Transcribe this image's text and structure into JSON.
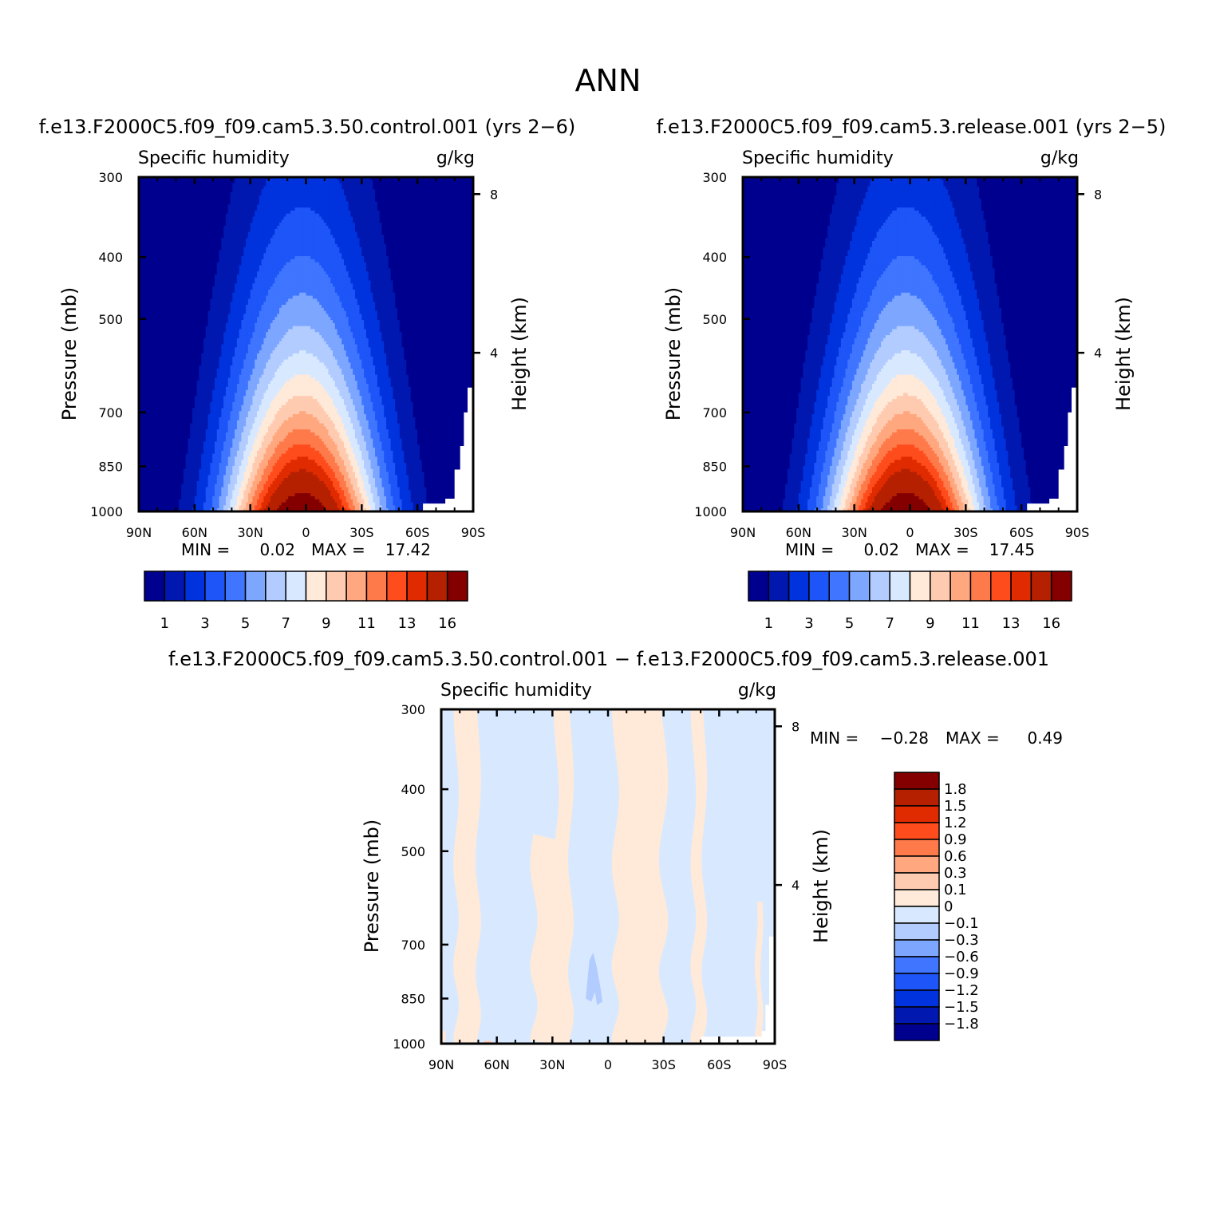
{
  "figure_title": "ANN",
  "diff_title": "f.e13.F2000C5.f09_f09.cam5.3.50.control.001 − f.e13.F2000C5.f09_f09.cam5.3.release.001",
  "chart_data": [
    {
      "type": "heatmap",
      "case": "f.e13.F2000C5.f09_f09.cam5.3.50.control.001 (yrs 2−6)",
      "variable": "Specific humidity",
      "units": "g/kg",
      "ylabel": "Pressure (mb)",
      "ylabel_right": "Height (km)",
      "x_ticks": [
        "90N",
        "60N",
        "30N",
        "0",
        "30S",
        "60S",
        "90S"
      ],
      "y_ticks": [
        "300",
        "400",
        "500",
        "700",
        "850",
        "1000"
      ],
      "y_ticks_right": [
        "8",
        "4"
      ],
      "ylim": [
        1000,
        300
      ],
      "min": "0.02",
      "max": "17.42",
      "min_label": "MIN =",
      "max_label": "MAX =",
      "colorbar_labels": [
        "1",
        "3",
        "5",
        "7",
        "9",
        "11",
        "13",
        "16"
      ],
      "colors": [
        "#00008e",
        "#0018b0",
        "#0033dd",
        "#1d55f8",
        "#3f75ff",
        "#7da6ff",
        "#b2ccff",
        "#d8e9ff",
        "#ffe9d8",
        "#ffcbb0",
        "#ffa880",
        "#ff7a4a",
        "#ff4c1c",
        "#e02b00",
        "#b52000",
        "#840000"
      ],
      "contour_levels": [
        1,
        2,
        3,
        4,
        5,
        6,
        7,
        8,
        9,
        10,
        11,
        12,
        13,
        14,
        16
      ]
    },
    {
      "type": "heatmap",
      "case": "f.e13.F2000C5.f09_f09.cam5.3.release.001 (yrs 2−5)",
      "variable": "Specific humidity",
      "units": "g/kg",
      "ylabel": "Pressure (mb)",
      "ylabel_right": "Height (km)",
      "x_ticks": [
        "90N",
        "60N",
        "30N",
        "0",
        "30S",
        "60S",
        "90S"
      ],
      "y_ticks": [
        "300",
        "400",
        "500",
        "700",
        "850",
        "1000"
      ],
      "y_ticks_right": [
        "8",
        "4"
      ],
      "ylim": [
        1000,
        300
      ],
      "min": "0.02",
      "max": "17.45",
      "min_label": "MIN =",
      "max_label": "MAX =",
      "colorbar_labels": [
        "1",
        "3",
        "5",
        "7",
        "9",
        "11",
        "13",
        "16"
      ],
      "colors": [
        "#00008e",
        "#0018b0",
        "#0033dd",
        "#1d55f8",
        "#3f75ff",
        "#7da6ff",
        "#b2ccff",
        "#d8e9ff",
        "#ffe9d8",
        "#ffcbb0",
        "#ffa880",
        "#ff7a4a",
        "#ff4c1c",
        "#e02b00",
        "#b52000",
        "#840000"
      ],
      "contour_levels": [
        1,
        2,
        3,
        4,
        5,
        6,
        7,
        8,
        9,
        10,
        11,
        12,
        13,
        14,
        16
      ]
    },
    {
      "type": "heatmap",
      "case": "difference",
      "variable": "Specific humidity",
      "units": "g/kg",
      "ylabel": "Pressure (mb)",
      "ylabel_right": "Height (km)",
      "x_ticks": [
        "90N",
        "60N",
        "30N",
        "0",
        "30S",
        "60S",
        "90S"
      ],
      "y_ticks": [
        "300",
        "400",
        "500",
        "700",
        "850",
        "1000"
      ],
      "y_ticks_right": [
        "8",
        "4"
      ],
      "ylim": [
        1000,
        300
      ],
      "min": "−0.28",
      "max": "0.49",
      "min_label": "MIN =",
      "max_label": "MAX =",
      "colorbar_labels": [
        "1.8",
        "1.5",
        "1.2",
        "0.9",
        "0.6",
        "0.3",
        "0.1",
        "0",
        "−0.1",
        "−0.3",
        "−0.6",
        "−0.9",
        "−1.2",
        "−1.5",
        "−1.8"
      ],
      "colors": [
        "#840000",
        "#b52000",
        "#e02b00",
        "#ff4c1c",
        "#ff7a4a",
        "#ffa880",
        "#ffcbb0",
        "#ffe9d8",
        "#d8e9ff",
        "#b2ccff",
        "#7da6ff",
        "#3f75ff",
        "#1d55f8",
        "#0033dd",
        "#0018b0",
        "#00008e"
      ],
      "contour_levels": [
        -1.8,
        -1.5,
        -1.2,
        -0.9,
        -0.6,
        -0.3,
        -0.1,
        0,
        0.1,
        0.3,
        0.6,
        0.9,
        1.2,
        1.5,
        1.8
      ]
    }
  ]
}
